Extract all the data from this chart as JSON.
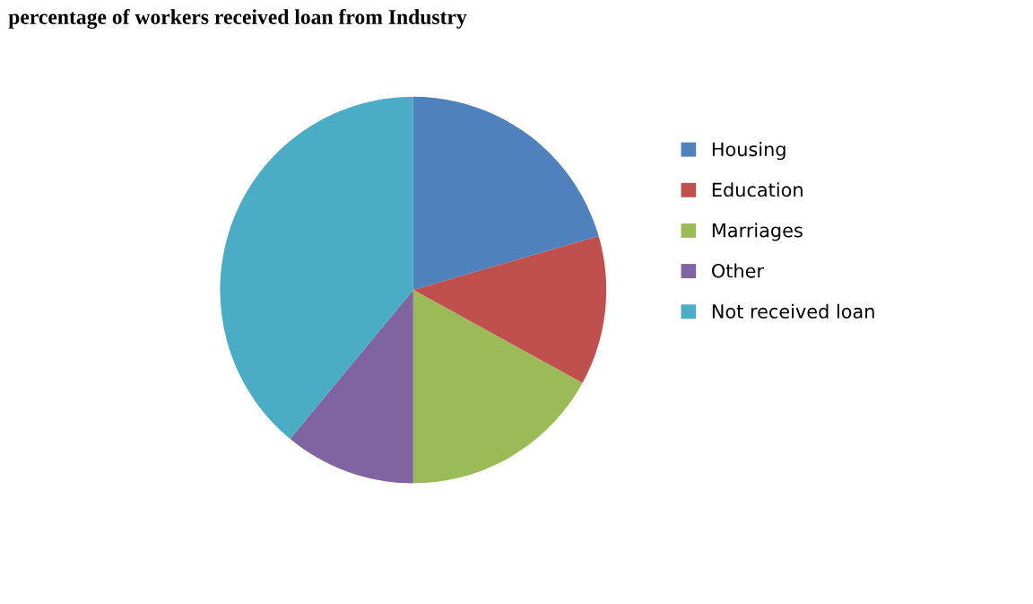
{
  "chart_data": {
    "type": "pie",
    "title": "percentage of workers received loan from Industry",
    "categories": [
      "Housing",
      "Education",
      "Marriages",
      "Other",
      "Not received loan"
    ],
    "values": [
      20.5,
      12.5,
      17,
      11,
      39
    ],
    "colors": [
      "#4f81bd",
      "#c0504d",
      "#9bbb59",
      "#8064a2",
      "#4bacc6"
    ],
    "legend": "right"
  }
}
